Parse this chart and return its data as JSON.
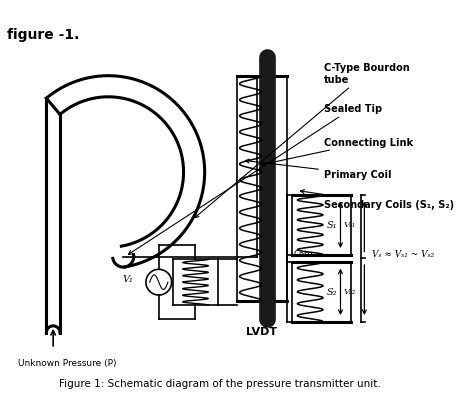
{
  "title": "Figure 1: Schematic diagram of the pressure transmitter unit.",
  "header": "figure -1.",
  "background_color": "#ffffff",
  "line_color": "#000000",
  "labels": {
    "c_type": "C-Type Bourdon\ntube",
    "sealed_tip": "Sealed Tip",
    "connecting_link": "Connecting Link",
    "primary_coil": "Primary Coil",
    "secondary_coils": "Secondary Coils (S₁, S₂)",
    "unknown_pressure": "Unknown Pressure (P)",
    "lvdt": "LVDT",
    "s1": "S₁",
    "s2": "S₂",
    "vs1": "Vₛ₁",
    "vs2": "Vₛ₂",
    "vs": "Vₛ ≈ Vₛ₁ ~ Vₛ₂",
    "v1": "V₁",
    "core": "Core"
  },
  "figsize": [
    4.74,
    4.14
  ],
  "dpi": 100
}
